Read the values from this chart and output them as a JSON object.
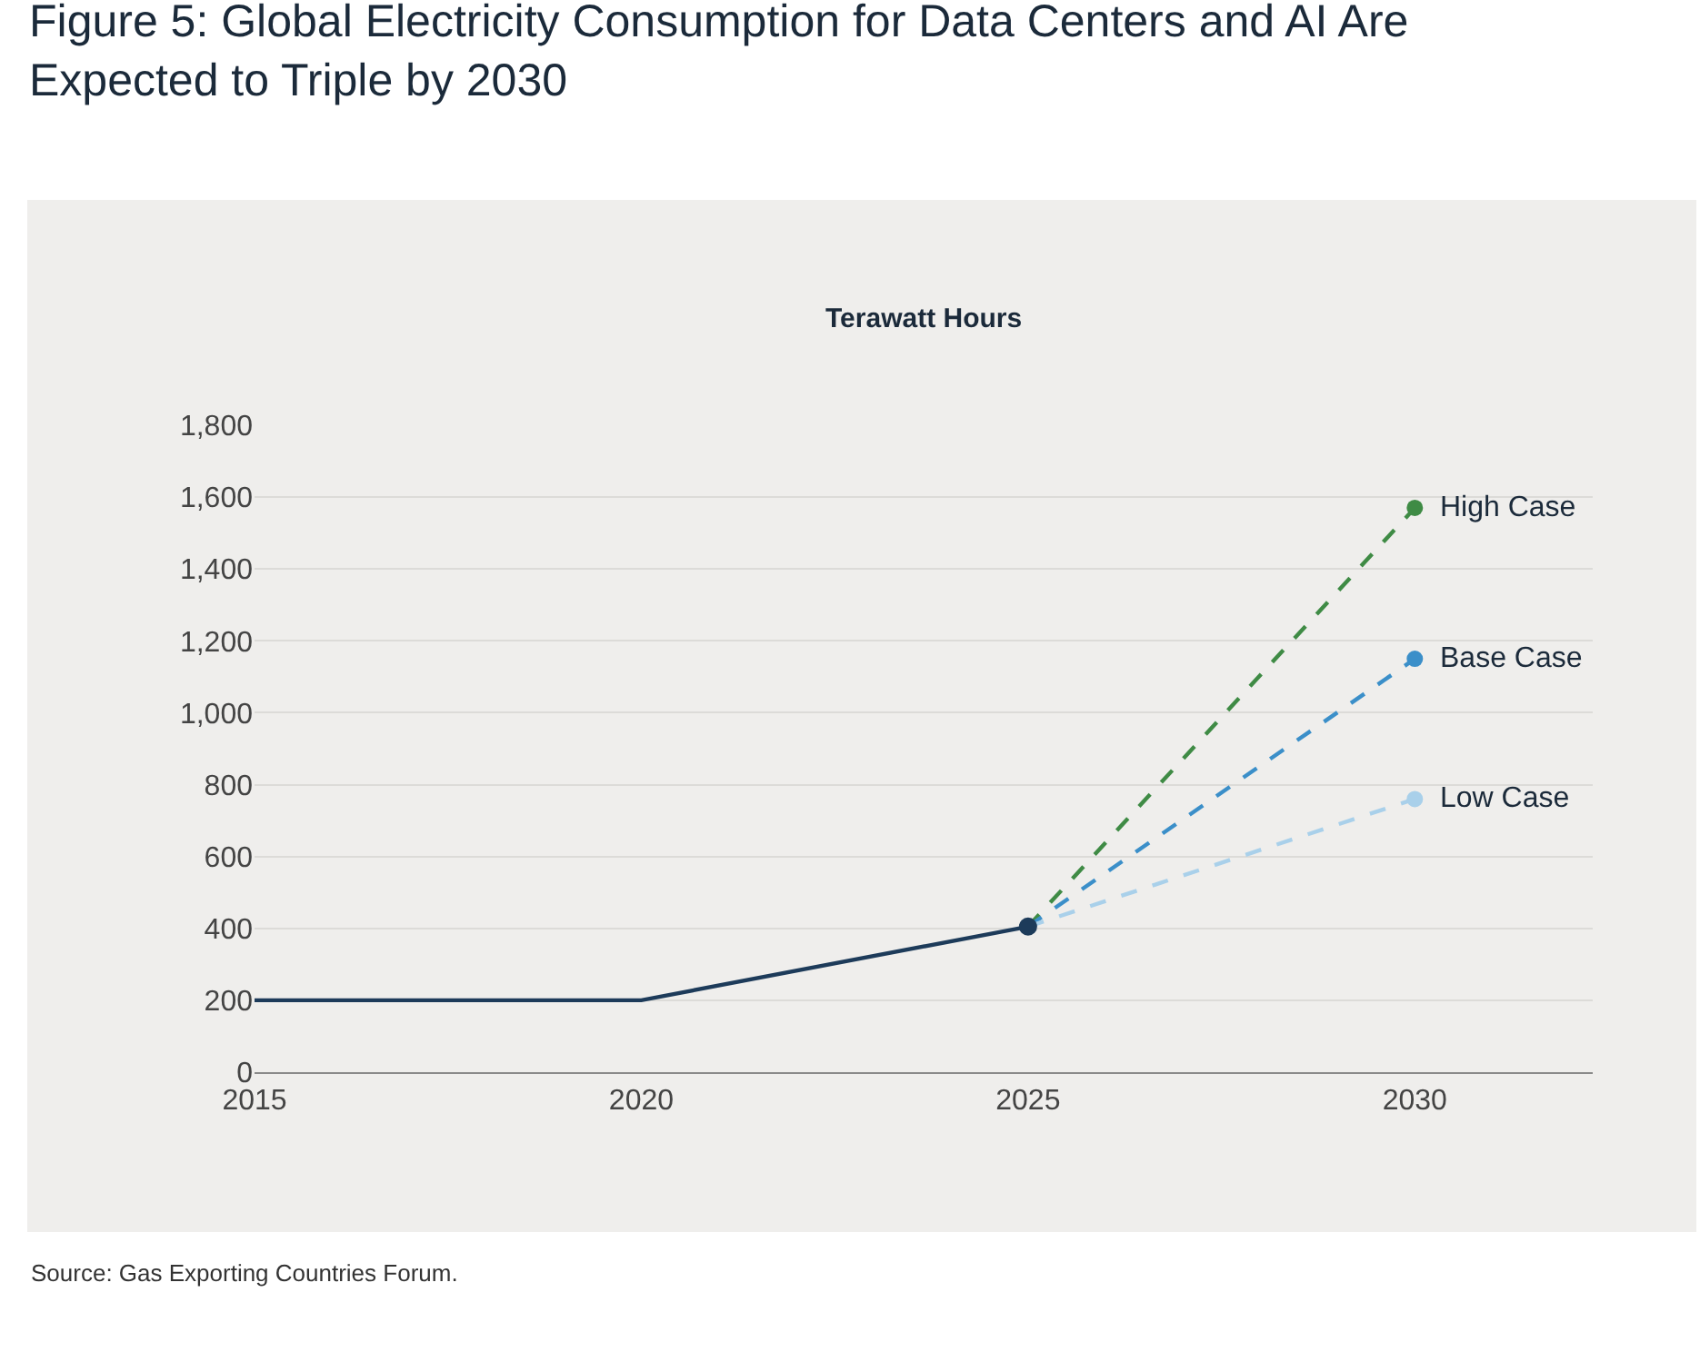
{
  "chart_data": {
    "type": "line",
    "title": "Figure 5: Global Electricity Consumption for Data Centers and AI Are Expected to Triple by 2030",
    "ylabel": "Terawatt Hours",
    "x": [
      2015,
      2020,
      2025,
      2030
    ],
    "series": [
      {
        "color": "#1d3b5a",
        "values": [
          200,
          200,
          405,
          null
        ],
        "line_style": "solid",
        "marker": "none"
      },
      {
        "name": "High Case",
        "color": "#3f8b45",
        "values": [
          null,
          null,
          405,
          1570
        ],
        "line_style": "dashed",
        "marker": "circle"
      },
      {
        "name": "Base Case",
        "color": "#3b8fc9",
        "values": [
          null,
          null,
          405,
          1150
        ],
        "line_style": "dashed",
        "marker": "circle"
      },
      {
        "name": "Low Case",
        "color": "#a9d0ea",
        "values": [
          null,
          null,
          405,
          760
        ],
        "line_style": "dashed",
        "marker": "circle"
      },
      {
        "type": "scatter",
        "color": "#1d3b5a",
        "x": [
          2025
        ],
        "values": [
          405
        ],
        "marker": "circle"
      }
    ],
    "xlim": [
      2015,
      2032.3
    ],
    "xticks": [
      2015,
      2020,
      2025,
      2030
    ],
    "ylim": [
      0,
      1800
    ],
    "yticks": [
      0,
      200,
      400,
      600,
      800,
      {
        "value": 1000,
        "label": "1,000"
      },
      {
        "value": 1200,
        "label": "1,200"
      },
      {
        "value": 1400,
        "label": "1,400"
      },
      {
        "value": 1600,
        "label": "1,600"
      },
      {
        "value": 1800,
        "label": "1,800"
      }
    ],
    "grid": "y",
    "legend": false,
    "annotations": [
      "Source: Gas Exporting Countries Forum."
    ]
  }
}
